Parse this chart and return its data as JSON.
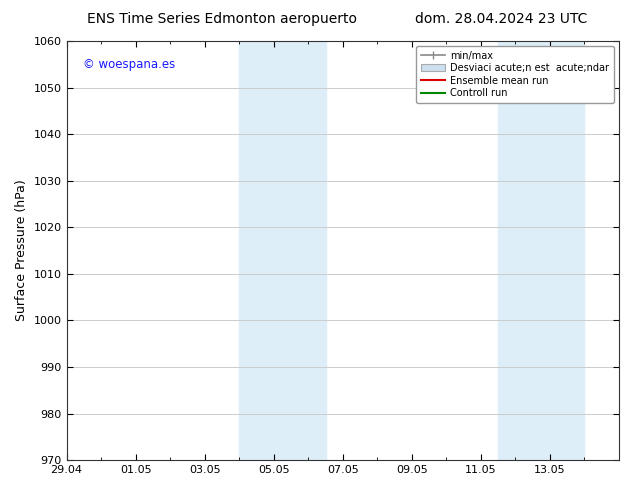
{
  "title_left": "ENS Time Series Edmonton aeropuerto",
  "title_right": "dom. 28.04.2024 23 UTC",
  "ylabel": "Surface Pressure (hPa)",
  "ylim": [
    970,
    1060
  ],
  "yticks": [
    970,
    980,
    990,
    1000,
    1010,
    1020,
    1030,
    1040,
    1050,
    1060
  ],
  "xlim_start": 0,
  "xlim_end": 16,
  "xtick_positions": [
    0,
    2,
    4,
    6,
    8,
    10,
    12,
    14
  ],
  "xtick_labels": [
    "29.04",
    "01.05",
    "03.05",
    "05.05",
    "07.05",
    "09.05",
    "11.05",
    "13.05"
  ],
  "shaded_regions": [
    {
      "xstart": 5.0,
      "xend": 7.5,
      "color": "#ddeef8"
    },
    {
      "xstart": 12.5,
      "xend": 15.0,
      "color": "#ddeef8"
    }
  ],
  "watermark_text": "© woespana.es",
  "watermark_color": "#1a1aff",
  "background_color": "#ffffff",
  "grid_color": "#cccccc",
  "title_fontsize": 10,
  "tick_fontsize": 8,
  "ylabel_fontsize": 9,
  "legend_minmax_color": "#888888",
  "legend_band_color": "#cce0f0",
  "legend_mean_color": "#dd0000",
  "legend_control_color": "#008800",
  "legend_minmax_label": "min/max",
  "legend_band_label": "Desviaci acute;n est  acute;ndar",
  "legend_mean_label": "Ensemble mean run",
  "legend_control_label": "Controll run"
}
